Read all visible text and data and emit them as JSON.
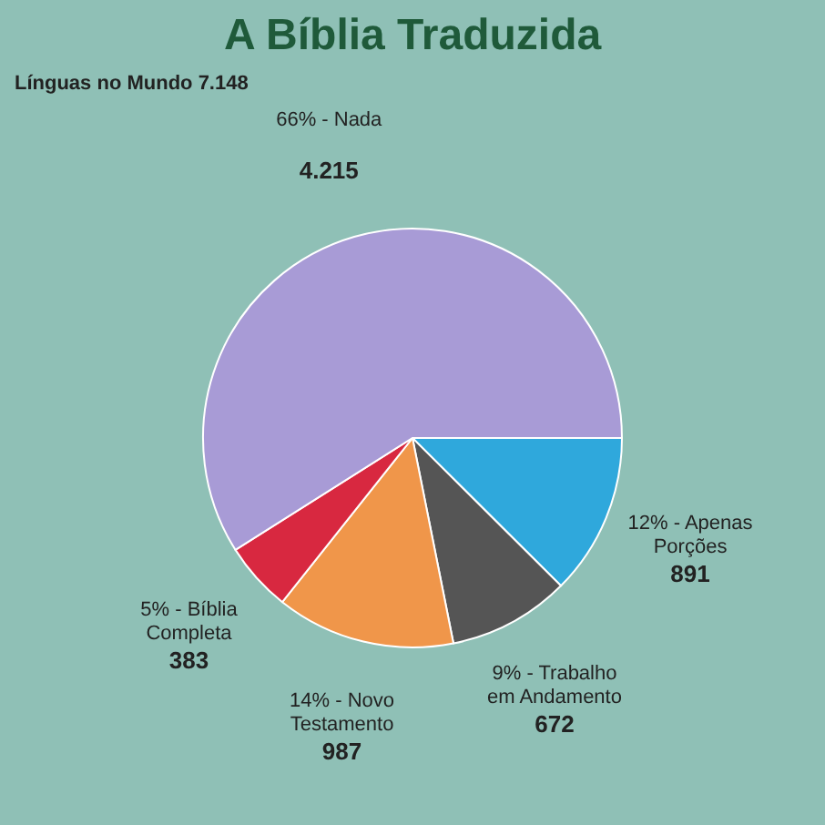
{
  "chart_data": {
    "type": "pie",
    "title": "A Bíblia Traduzida",
    "categories": [
      "12% - Apenas Porções",
      "9% - Trabalho em Andamento",
      "14% - Novo Testamento",
      "5% - Bíblia Completa",
      "66% - Nada"
    ],
    "values": [
      891,
      672,
      987,
      383,
      4215
    ],
    "value_labels": [
      "891",
      "672",
      "987",
      "383",
      "4.215"
    ],
    "colors": [
      "#2fa8dc",
      "#555555",
      "#f0964a",
      "#d82840",
      "#a89bd6"
    ],
    "annotations": [
      "Línguas no Mundo 7.148"
    ],
    "legend": false
  }
}
